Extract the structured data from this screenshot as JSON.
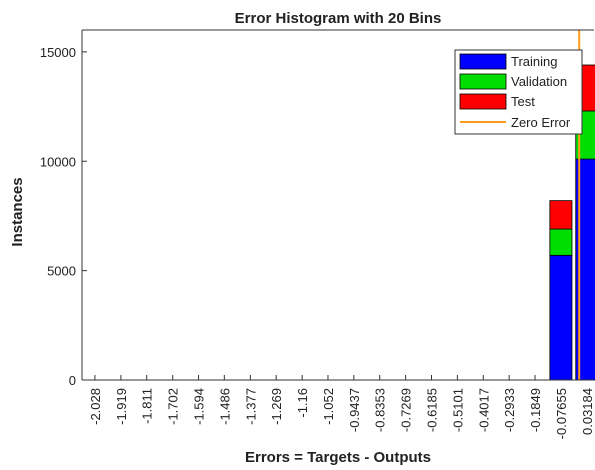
{
  "chart_data": {
    "type": "histogram",
    "title": "Error Histogram with 20 Bins",
    "xlabel": "Errors = Targets - Outputs",
    "ylabel": "Instances",
    "x": [
      -2.028,
      -1.919,
      -1.811,
      -1.702,
      -1.594,
      -1.486,
      -1.377,
      -1.269,
      -1.16,
      -1.052,
      -0.9437,
      -0.8353,
      -0.7269,
      -0.6185,
      -0.5101,
      -0.4017,
      -0.2933,
      -0.1849,
      -0.07655,
      0.03184
    ],
    "series": [
      {
        "name": "Training",
        "color": "#0000ff",
        "values": [
          0,
          0,
          0,
          0,
          0,
          0,
          0,
          0,
          0,
          0,
          0,
          0,
          0,
          0,
          0,
          0,
          0,
          0,
          5700,
          10100
        ]
      },
      {
        "name": "Validation",
        "color": "#00dd00",
        "values": [
          0,
          0,
          0,
          0,
          0,
          0,
          0,
          0,
          0,
          0,
          0,
          0,
          0,
          0,
          0,
          0,
          0,
          0,
          1200,
          2200
        ]
      },
      {
        "name": "Test",
        "color": "#ff0000",
        "values": [
          0,
          0,
          0,
          0,
          0,
          0,
          0,
          0,
          0,
          0,
          0,
          0,
          0,
          0,
          0,
          0,
          0,
          0,
          1300,
          2100
        ]
      }
    ],
    "zero_line": {
      "name": "Zero Error",
      "color": "#ff9a1a",
      "x": 0
    },
    "xlim": [
      -2.082,
      0.062
    ],
    "xticks": [
      -2.028,
      -1.919,
      -1.811,
      -1.702,
      -1.594,
      -1.486,
      -1.377,
      -1.269,
      -1.16,
      -1.052,
      -0.9437,
      -0.8353,
      -0.7269,
      -0.6185,
      -0.5101,
      -0.4017,
      -0.2933,
      -0.1849,
      -0.07655,
      0.03184
    ],
    "ylim": [
      0,
      16000
    ],
    "yticks": [
      0,
      5000,
      10000,
      15000
    ],
    "grid": false,
    "legend": "northeast"
  }
}
